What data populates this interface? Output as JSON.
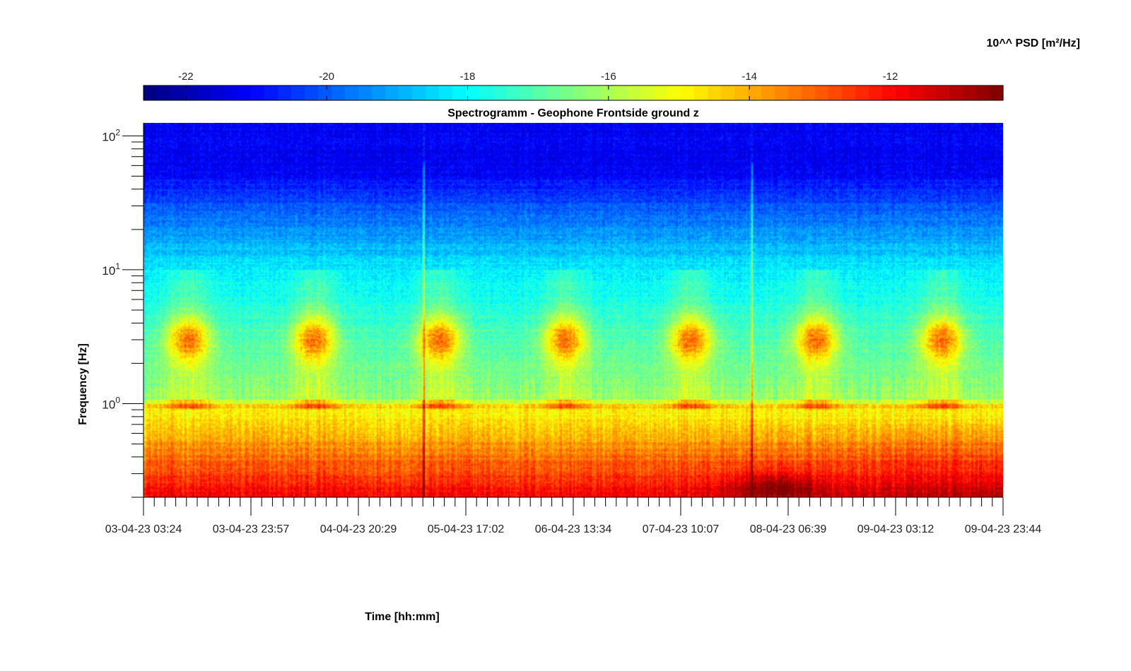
{
  "chart_data": {
    "type": "heatmap",
    "title": "Spectrogramm - Geophone Frontside ground z",
    "xlabel": "Time [hh:mm]",
    "ylabel": "Frequency [Hz]",
    "colorbar": {
      "label": "10^^ PSD [m²/Hz]",
      "placement": "top",
      "colormap": "jet",
      "range": [
        -22.6,
        -10.4
      ],
      "ticks": [
        -22,
        -20,
        -18,
        -16,
        -14,
        -12
      ],
      "tick_labels": [
        "-22",
        "-20",
        "-18",
        "-16",
        "-14",
        "-12"
      ]
    },
    "x": {
      "range": [
        "03-04-23 03:24",
        "09-04-23 23:44"
      ],
      "tick_labels": [
        "03-04-23 03:24",
        "03-04-23 23:57",
        "04-04-23 20:29",
        "05-04-23 17:02",
        "06-04-23 13:34",
        "07-04-23 10:07",
        "08-04-23 06:39",
        "09-04-23 03:12",
        "09-04-23 23:44"
      ],
      "minor_ticks_per_major": 10
    },
    "y": {
      "scale": "log",
      "range": [
        0.2,
        125
      ],
      "ticks": [
        1,
        10,
        100
      ],
      "tick_labels": [
        {
          "base": "10",
          "exp": "0"
        },
        {
          "base": "10",
          "exp": "1"
        },
        {
          "base": "10",
          "exp": "2"
        }
      ]
    },
    "features": {
      "daily_activity_band_hz": [
        2,
        5
      ],
      "harmonic_line_hz": 1.0,
      "transient_events": [
        "05-04-23 09:00",
        "07-04-23 23:45"
      ],
      "max_psd_region": {
        "time": "08-04-23 04:00",
        "freq_hz": 0.25,
        "psd_log10": -11
      }
    }
  }
}
